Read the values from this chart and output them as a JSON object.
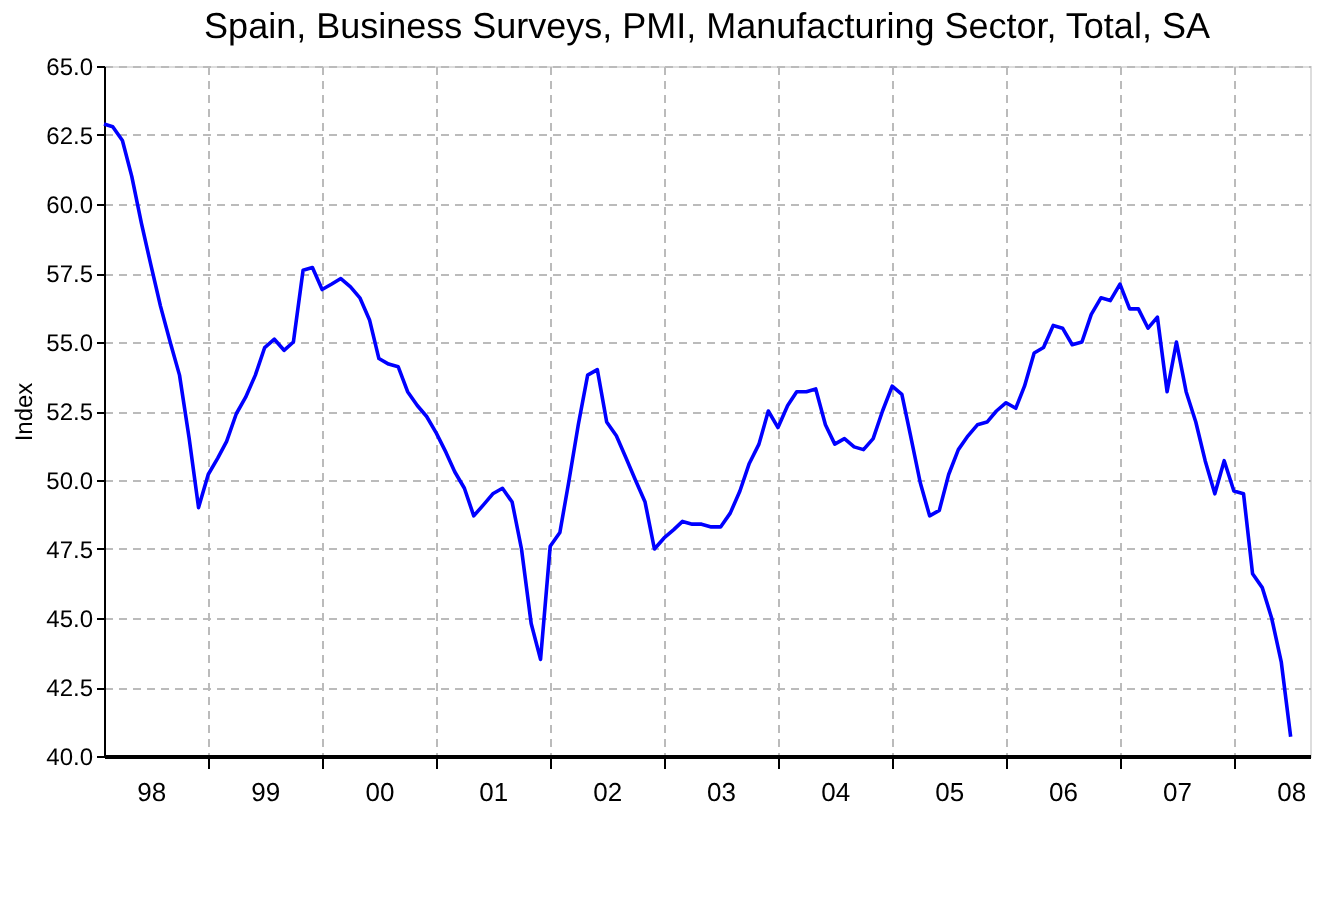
{
  "chart_data": {
    "type": "line",
    "title": "Spain, Business Surveys, PMI, Manufacturing Sector, Total, SA",
    "ylabel": "Index",
    "xlim": [
      "1998-02",
      "2008-09"
    ],
    "xticks": [
      {
        "value": "1998-07",
        "label": "98"
      },
      {
        "value": "1999-01",
        "label": null
      },
      {
        "value": "1999-07",
        "label": "99"
      },
      {
        "value": "2000-01",
        "label": null
      },
      {
        "value": "2000-07",
        "label": "00"
      },
      {
        "value": "2001-01",
        "label": null
      },
      {
        "value": "2001-07",
        "label": "01"
      },
      {
        "value": "2002-01",
        "label": null
      },
      {
        "value": "2002-07",
        "label": "02"
      },
      {
        "value": "2003-01",
        "label": null
      },
      {
        "value": "2003-07",
        "label": "03"
      },
      {
        "value": "2004-01",
        "label": null
      },
      {
        "value": "2004-07",
        "label": "04"
      },
      {
        "value": "2005-01",
        "label": null
      },
      {
        "value": "2005-07",
        "label": "05"
      },
      {
        "value": "2006-01",
        "label": null
      },
      {
        "value": "2006-07",
        "label": "06"
      },
      {
        "value": "2007-01",
        "label": null
      },
      {
        "value": "2007-07",
        "label": "07"
      },
      {
        "value": "2008-01",
        "label": null
      },
      {
        "value": "2008-07",
        "label": "08"
      }
    ],
    "ylim": [
      40,
      65
    ],
    "yticks": [
      {
        "value": 40,
        "label": "40.0"
      },
      {
        "value": 42.5,
        "label": "42.5"
      },
      {
        "value": 45,
        "label": "45.0"
      },
      {
        "value": 47.5,
        "label": "47.5"
      },
      {
        "value": 50,
        "label": "50.0"
      },
      {
        "value": 52.5,
        "label": "52.5"
      },
      {
        "value": 55,
        "label": "55.0"
      },
      {
        "value": 57.5,
        "label": "57.5"
      },
      {
        "value": 60,
        "label": "60.0"
      },
      {
        "value": 62.5,
        "label": "62.5"
      },
      {
        "value": 65,
        "label": "65.0"
      }
    ],
    "grid": true,
    "marker": "none",
    "line_style": "solid",
    "series": [
      {
        "color": "#0000ff",
        "x": [
          "1998-02",
          "1998-03",
          "1998-04",
          "1998-05",
          "1998-06",
          "1998-07",
          "1998-08",
          "1998-09",
          "1998-10",
          "1998-11",
          "1998-12",
          "1999-01",
          "1999-02",
          "1999-03",
          "1999-04",
          "1999-05",
          "1999-06",
          "1999-07",
          "1999-08",
          "1999-09",
          "1999-10",
          "1999-11",
          "1999-12",
          "2000-01",
          "2000-02",
          "2000-03",
          "2000-04",
          "2000-05",
          "2000-06",
          "2000-07",
          "2000-08",
          "2000-09",
          "2000-10",
          "2000-11",
          "2000-12",
          "2001-01",
          "2001-02",
          "2001-03",
          "2001-04",
          "2001-05",
          "2001-06",
          "2001-07",
          "2001-08",
          "2001-09",
          "2001-10",
          "2001-11",
          "2001-12",
          "2002-01",
          "2002-02",
          "2002-03",
          "2002-04",
          "2002-05",
          "2002-06",
          "2002-07",
          "2002-08",
          "2002-09",
          "2002-10",
          "2002-11",
          "2002-12",
          "2003-01",
          "2003-02",
          "2003-03",
          "2003-04",
          "2003-05",
          "2003-06",
          "2003-07",
          "2003-08",
          "2003-09",
          "2003-10",
          "2003-11",
          "2003-12",
          "2004-01",
          "2004-02",
          "2004-03",
          "2004-04",
          "2004-05",
          "2004-06",
          "2004-07",
          "2004-08",
          "2004-09",
          "2004-10",
          "2004-11",
          "2004-12",
          "2005-01",
          "2005-02",
          "2005-03",
          "2005-04",
          "2005-05",
          "2005-06",
          "2005-07",
          "2005-08",
          "2005-09",
          "2005-10",
          "2005-11",
          "2005-12",
          "2006-01",
          "2006-02",
          "2006-03",
          "2006-04",
          "2006-05",
          "2006-06",
          "2006-07",
          "2006-08",
          "2006-09",
          "2006-10",
          "2006-11",
          "2006-12",
          "2007-01",
          "2007-02",
          "2007-03",
          "2007-04",
          "2007-05",
          "2007-06",
          "2007-07",
          "2007-08",
          "2007-09",
          "2007-10",
          "2007-11",
          "2007-12",
          "2008-01",
          "2008-02",
          "2008-03",
          "2008-04",
          "2008-05",
          "2008-06",
          "2008-07"
        ],
        "values": [
          62.9,
          62.8,
          62.3,
          61.0,
          59.3,
          57.8,
          56.3,
          55.0,
          53.8,
          51.5,
          49.0,
          50.2,
          50.8,
          51.4,
          52.4,
          53.0,
          53.8,
          54.8,
          55.1,
          54.7,
          55.0,
          57.6,
          57.7,
          56.9,
          57.1,
          57.3,
          57.0,
          56.6,
          55.8,
          54.4,
          54.2,
          54.1,
          53.2,
          52.7,
          52.3,
          51.7,
          51.0,
          50.3,
          49.7,
          48.7,
          49.1,
          49.5,
          49.7,
          49.2,
          47.5,
          44.8,
          43.5,
          47.6,
          48.1,
          49.9,
          52.0,
          53.8,
          54.0,
          52.1,
          51.6,
          50.8,
          50.0,
          49.2,
          47.5,
          47.9,
          48.2,
          48.5,
          48.4,
          48.4,
          48.3,
          48.3,
          48.8,
          49.6,
          50.6,
          51.3,
          52.5,
          51.9,
          52.7,
          53.2,
          53.2,
          53.3,
          52.0,
          51.3,
          51.5,
          51.2,
          51.1,
          51.5,
          52.5,
          53.4,
          53.1,
          51.6,
          49.9,
          48.7,
          48.9,
          50.2,
          51.1,
          51.6,
          52.0,
          52.1,
          52.5,
          52.8,
          52.6,
          53.4,
          54.6,
          54.8,
          55.6,
          55.5,
          54.9,
          55.0,
          56.0,
          56.6,
          56.5,
          57.1,
          56.2,
          56.2,
          55.5,
          55.9,
          53.2,
          55.0,
          53.2,
          52.1,
          50.7,
          49.5,
          50.7,
          49.6,
          49.5,
          46.6,
          46.1,
          45.0,
          43.4,
          40.7
        ]
      }
    ]
  }
}
